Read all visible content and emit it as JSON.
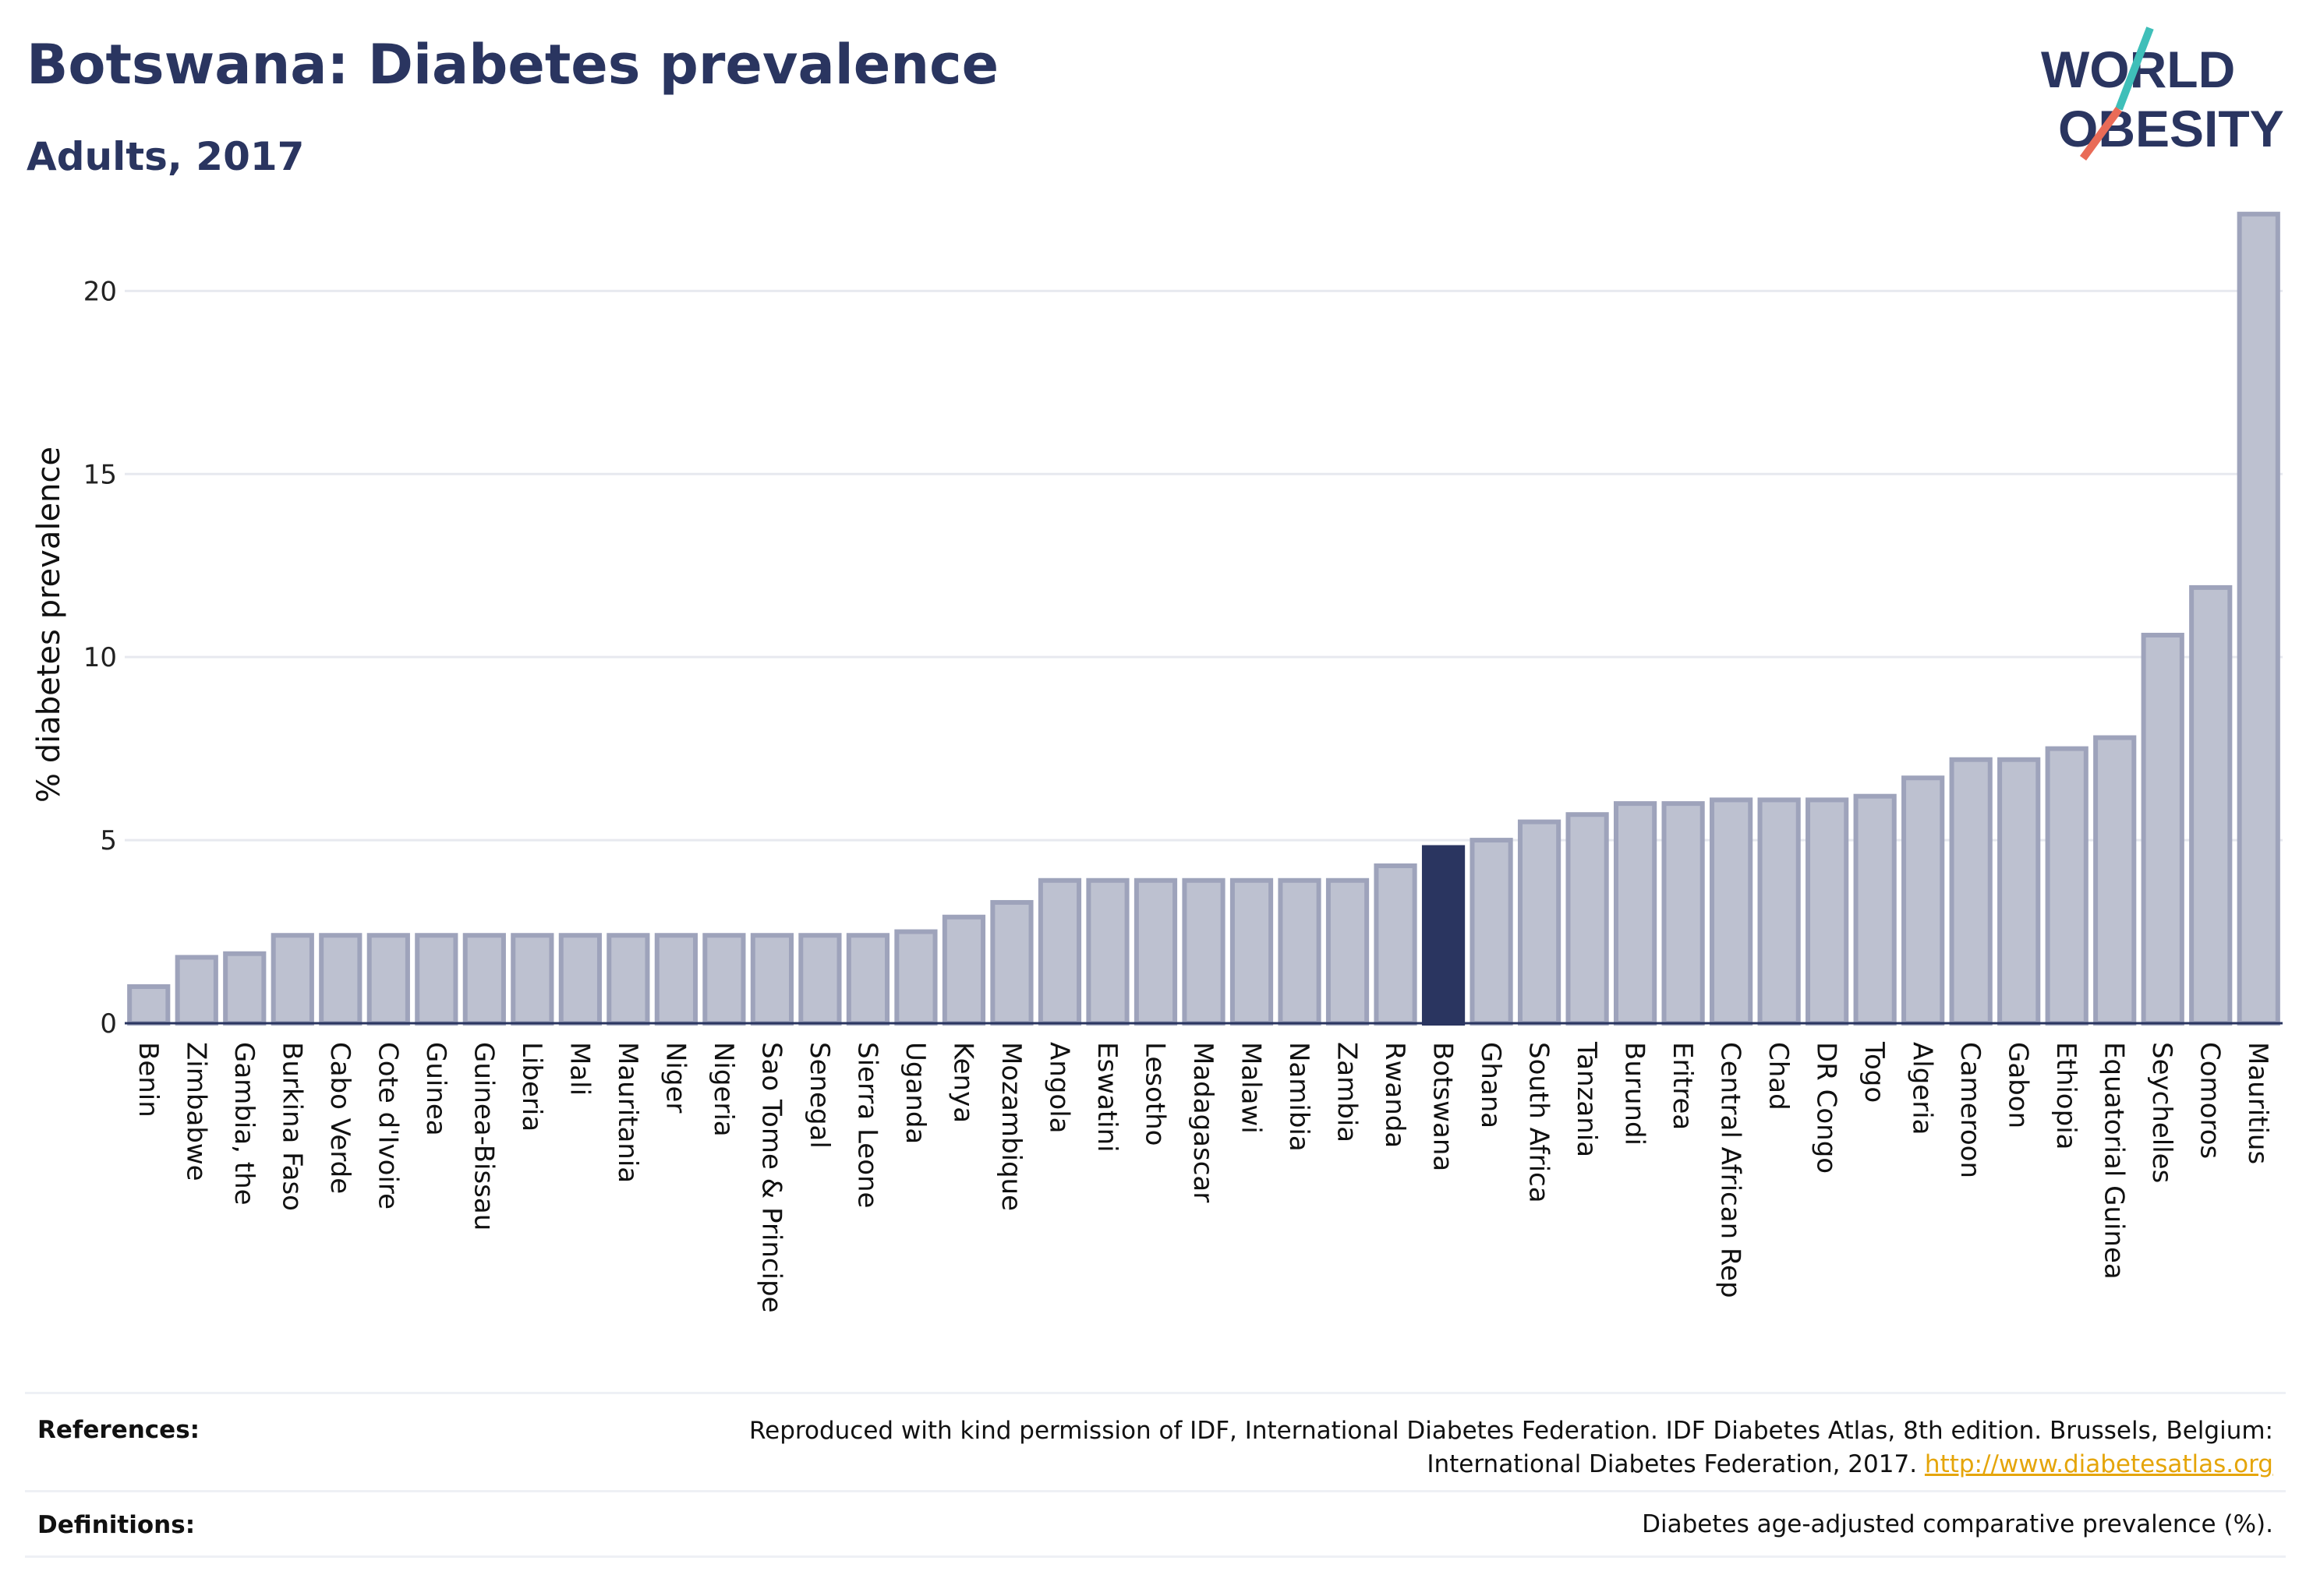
{
  "header": {
    "title": "Botswana: Diabetes prevalence",
    "subtitle": "Adults, 2017"
  },
  "logo": {
    "line1": "WORLD",
    "line2": "OBESITY",
    "slash_colors": [
      "#3fbfb9",
      "#e96b57"
    ]
  },
  "colors": {
    "bar": "#bdc1d0",
    "bar_border": "#9ea3bb",
    "highlight": "#2a3560",
    "grid": "#e7e9ef"
  },
  "chart_data": {
    "type": "bar",
    "title": "Botswana: Diabetes prevalence",
    "subtitle": "Adults, 2017",
    "xlabel": "",
    "ylabel": "% diabetes prevalence",
    "ylim": [
      0,
      22.2
    ],
    "yticks": [
      0,
      5,
      10,
      15,
      20
    ],
    "grid": true,
    "highlight": "Botswana",
    "categories": [
      "Benin",
      "Zimbabwe",
      "Gambia, the",
      "Burkina Faso",
      "Cabo Verde",
      "Cote d'Ivoire",
      "Guinea",
      "Guinea-Bissau",
      "Liberia",
      "Mali",
      "Mauritania",
      "Niger",
      "Nigeria",
      "Sao Tome & Principe",
      "Senegal",
      "Sierra Leone",
      "Uganda",
      "Kenya",
      "Mozambique",
      "Angola",
      "Eswatini",
      "Lesotho",
      "Madagascar",
      "Malawi",
      "Namibia",
      "Zambia",
      "Rwanda",
      "Botswana",
      "Ghana",
      "South Africa",
      "Tanzania",
      "Burundi",
      "Eritrea",
      "Central African Rep",
      "Chad",
      "DR Congo",
      "Togo",
      "Algeria",
      "Cameroon",
      "Gabon",
      "Ethiopia",
      "Equatorial Guinea",
      "Seychelles",
      "Comoros",
      "Mauritius"
    ],
    "values": [
      1.0,
      1.8,
      1.9,
      2.4,
      2.4,
      2.4,
      2.4,
      2.4,
      2.4,
      2.4,
      2.4,
      2.4,
      2.4,
      2.4,
      2.4,
      2.4,
      2.5,
      2.9,
      3.3,
      3.9,
      3.9,
      3.9,
      3.9,
      3.9,
      3.9,
      3.9,
      4.3,
      4.8,
      5.0,
      5.5,
      5.7,
      6.0,
      6.0,
      6.1,
      6.1,
      6.1,
      6.2,
      6.7,
      7.2,
      7.2,
      7.5,
      7.8,
      10.6,
      11.9,
      22.1
    ]
  },
  "footer": {
    "references_label": "References:",
    "references_line1": "Reproduced with kind permission of IDF, International Diabetes Federation. IDF Diabetes Atlas, 8th edition. Brussels, Belgium:",
    "references_line2": "International Diabetes Federation, 2017.",
    "references_link": "http://www.diabetesatlas.org",
    "definitions_label": "Definitions:",
    "definitions_text": "Diabetes age-adjusted comparative prevalence (%)."
  }
}
